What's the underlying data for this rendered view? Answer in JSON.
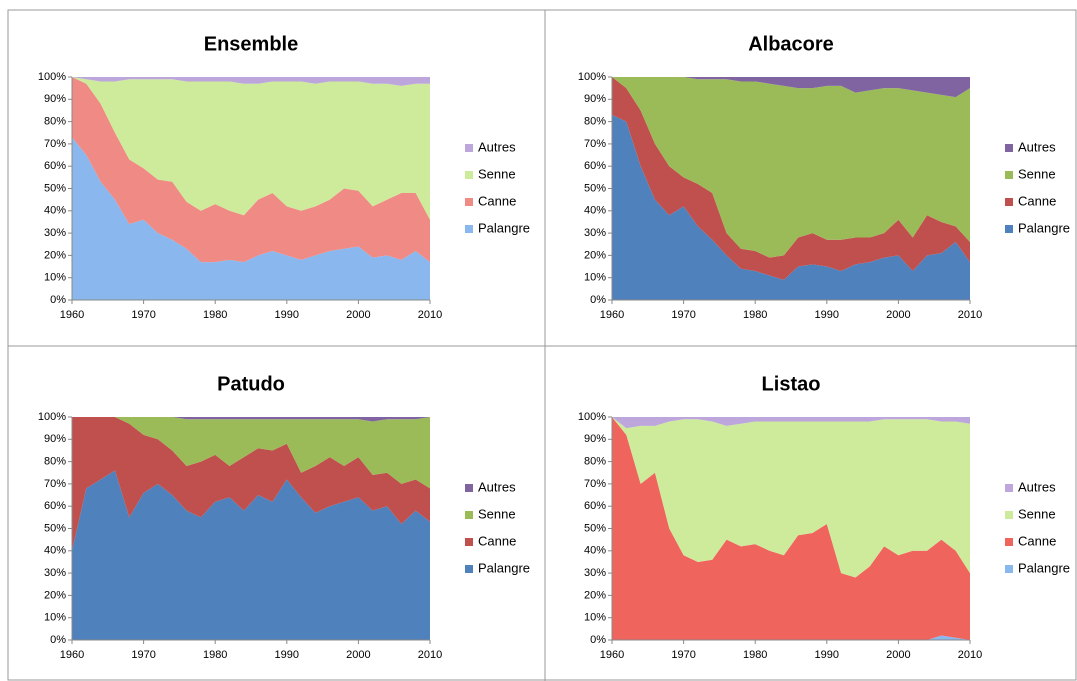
{
  "chart_data": [
    {
      "type": "area",
      "title": "Ensemble",
      "stacked": true,
      "x": [
        1960,
        1962,
        1964,
        1966,
        1968,
        1970,
        1972,
        1974,
        1976,
        1978,
        1980,
        1982,
        1984,
        1986,
        1988,
        1990,
        1992,
        1994,
        1996,
        1998,
        2000,
        2002,
        2004,
        2006,
        2008,
        2010
      ],
      "xlim": [
        1960,
        2010
      ],
      "xticks": [
        1960,
        1970,
        1980,
        1990,
        2000,
        2010
      ],
      "ylim": [
        0,
        100
      ],
      "yticks": [
        {
          "value": 0,
          "label": "0%"
        },
        {
          "value": 10,
          "label": "10%"
        },
        {
          "value": 20,
          "label": "20%"
        },
        {
          "value": 30,
          "label": "30%"
        },
        {
          "value": 40,
          "label": "40%"
        },
        {
          "value": 50,
          "label": "50%"
        },
        {
          "value": 60,
          "label": "60%"
        },
        {
          "value": 70,
          "label": "70%"
        },
        {
          "value": 80,
          "label": "80%"
        },
        {
          "value": 90,
          "label": "90%"
        },
        {
          "value": 100,
          "label": "100%"
        }
      ],
      "series": [
        {
          "name": "Palangre",
          "color": "#8ab8ee",
          "values": [
            73,
            65,
            53,
            45,
            34,
            36,
            30,
            27,
            23,
            17,
            17,
            18,
            17,
            20,
            22,
            20,
            18,
            20,
            22,
            23,
            24,
            19,
            20,
            18,
            22,
            17
          ]
        },
        {
          "name": "Canne",
          "color": "#f08a84",
          "values": [
            27,
            32,
            35,
            30,
            29,
            23,
            24,
            26,
            21,
            23,
            26,
            22,
            21,
            25,
            26,
            22,
            22,
            22,
            23,
            27,
            25,
            23,
            25,
            30,
            26,
            19
          ]
        },
        {
          "name": "Senne",
          "color": "#cdeb9a",
          "values": [
            0,
            2,
            10,
            23,
            36,
            40,
            45,
            46,
            54,
            58,
            55,
            58,
            59,
            52,
            50,
            56,
            58,
            55,
            53,
            48,
            49,
            55,
            52,
            48,
            49,
            61
          ]
        },
        {
          "name": "Autres",
          "color": "#bca6dc",
          "values": [
            0,
            1,
            2,
            2,
            1,
            1,
            1,
            1,
            2,
            2,
            2,
            2,
            3,
            3,
            2,
            2,
            2,
            3,
            2,
            2,
            2,
            3,
            3,
            4,
            3,
            3
          ]
        }
      ]
    },
    {
      "type": "area",
      "title": "Albacore",
      "stacked": true,
      "x": [
        1960,
        1962,
        1964,
        1966,
        1968,
        1970,
        1972,
        1974,
        1976,
        1978,
        1980,
        1982,
        1984,
        1986,
        1988,
        1990,
        1992,
        1994,
        1996,
        1998,
        2000,
        2002,
        2004,
        2006,
        2008,
        2010
      ],
      "xlim": [
        1960,
        2010
      ],
      "xticks": [
        1960,
        1970,
        1980,
        1990,
        2000,
        2010
      ],
      "ylim": [
        0,
        100
      ],
      "yticks": [
        {
          "value": 0,
          "label": "0%"
        },
        {
          "value": 10,
          "label": "10%"
        },
        {
          "value": 20,
          "label": "20%"
        },
        {
          "value": 30,
          "label": "30%"
        },
        {
          "value": 40,
          "label": "40%"
        },
        {
          "value": 50,
          "label": "50%"
        },
        {
          "value": 60,
          "label": "60%"
        },
        {
          "value": 70,
          "label": "70%"
        },
        {
          "value": 80,
          "label": "80%"
        },
        {
          "value": 90,
          "label": "90%"
        },
        {
          "value": 100,
          "label": "100%"
        }
      ],
      "series": [
        {
          "name": "Palangre",
          "color": "#4f81bd",
          "values": [
            83,
            80,
            60,
            45,
            38,
            42,
            33,
            27,
            20,
            14,
            13,
            11,
            9,
            15,
            16,
            15,
            13,
            16,
            17,
            19,
            20,
            13,
            20,
            21,
            26,
            17
          ]
        },
        {
          "name": "Canne",
          "color": "#c0504d",
          "values": [
            17,
            15,
            25,
            25,
            22,
            13,
            19,
            21,
            10,
            9,
            9,
            8,
            11,
            13,
            14,
            12,
            14,
            12,
            11,
            11,
            16,
            15,
            18,
            14,
            7,
            9
          ]
        },
        {
          "name": "Senne",
          "color": "#9bbb59",
          "values": [
            0,
            5,
            15,
            30,
            40,
            45,
            47,
            51,
            69,
            75,
            76,
            78,
            76,
            67,
            65,
            69,
            69,
            65,
            66,
            65,
            59,
            66,
            55,
            57,
            58,
            69
          ]
        },
        {
          "name": "Autres",
          "color": "#8064a2",
          "values": [
            0,
            0,
            0,
            0,
            0,
            0,
            1,
            1,
            1,
            2,
            2,
            3,
            4,
            5,
            5,
            4,
            4,
            7,
            6,
            5,
            5,
            6,
            7,
            8,
            9,
            5
          ]
        }
      ]
    },
    {
      "type": "area",
      "title": "Patudo",
      "stacked": true,
      "x": [
        1960,
        1962,
        1964,
        1966,
        1968,
        1970,
        1972,
        1974,
        1976,
        1978,
        1980,
        1982,
        1984,
        1986,
        1988,
        1990,
        1992,
        1994,
        1996,
        1998,
        2000,
        2002,
        2004,
        2006,
        2008,
        2010
      ],
      "xlim": [
        1960,
        2010
      ],
      "xticks": [
        1960,
        1970,
        1980,
        1990,
        2000,
        2010
      ],
      "ylim": [
        0,
        100
      ],
      "yticks": [
        {
          "value": 0,
          "label": "0%"
        },
        {
          "value": 10,
          "label": "10%"
        },
        {
          "value": 20,
          "label": "20%"
        },
        {
          "value": 30,
          "label": "30%"
        },
        {
          "value": 40,
          "label": "40%"
        },
        {
          "value": 50,
          "label": "50%"
        },
        {
          "value": 60,
          "label": "60%"
        },
        {
          "value": 70,
          "label": "70%"
        },
        {
          "value": 80,
          "label": "80%"
        },
        {
          "value": 90,
          "label": "90%"
        },
        {
          "value": 100,
          "label": "100%"
        }
      ],
      "series": [
        {
          "name": "Palangre",
          "color": "#4f81bd",
          "values": [
            40,
            68,
            72,
            76,
            55,
            66,
            70,
            65,
            58,
            55,
            62,
            64,
            58,
            65,
            62,
            72,
            64,
            57,
            60,
            62,
            64,
            58,
            60,
            52,
            58,
            53
          ]
        },
        {
          "name": "Canne",
          "color": "#c0504d",
          "values": [
            60,
            32,
            28,
            24,
            42,
            26,
            20,
            20,
            20,
            25,
            21,
            14,
            24,
            21,
            23,
            16,
            11,
            21,
            22,
            16,
            18,
            16,
            15,
            18,
            14,
            15
          ]
        },
        {
          "name": "Senne",
          "color": "#9bbb59",
          "values": [
            0,
            0,
            0,
            0,
            3,
            8,
            10,
            15,
            21,
            19,
            16,
            21,
            17,
            13,
            14,
            11,
            24,
            21,
            17,
            21,
            17,
            24,
            24,
            29,
            27,
            32
          ]
        },
        {
          "name": "Autres",
          "color": "#8064a2",
          "values": [
            0,
            0,
            0,
            0,
            0,
            0,
            0,
            0,
            1,
            1,
            1,
            1,
            1,
            1,
            1,
            1,
            1,
            1,
            1,
            1,
            1,
            2,
            1,
            1,
            1,
            0
          ]
        }
      ]
    },
    {
      "type": "area",
      "title": "Listao",
      "stacked": true,
      "x": [
        1960,
        1962,
        1964,
        1966,
        1968,
        1970,
        1972,
        1974,
        1976,
        1978,
        1980,
        1982,
        1984,
        1986,
        1988,
        1990,
        1992,
        1994,
        1996,
        1998,
        2000,
        2002,
        2004,
        2006,
        2008,
        2010
      ],
      "xlim": [
        1960,
        2010
      ],
      "xticks": [
        1960,
        1970,
        1980,
        1990,
        2000,
        2010
      ],
      "ylim": [
        0,
        100
      ],
      "yticks": [
        {
          "value": 0,
          "label": "0%"
        },
        {
          "value": 10,
          "label": "10%"
        },
        {
          "value": 20,
          "label": "20%"
        },
        {
          "value": 30,
          "label": "30%"
        },
        {
          "value": 40,
          "label": "40%"
        },
        {
          "value": 50,
          "label": "50%"
        },
        {
          "value": 60,
          "label": "60%"
        },
        {
          "value": 70,
          "label": "70%"
        },
        {
          "value": 80,
          "label": "80%"
        },
        {
          "value": 90,
          "label": "90%"
        },
        {
          "value": 100,
          "label": "100%"
        }
      ],
      "series": [
        {
          "name": "Palangre",
          "color": "#8ab8ee",
          "values": [
            0,
            0,
            0,
            0,
            0,
            0,
            0,
            0,
            0,
            0,
            0,
            0,
            0,
            0,
            0,
            0,
            0,
            0,
            0,
            0,
            0,
            0,
            0,
            2,
            1,
            0
          ]
        },
        {
          "name": "Canne",
          "color": "#f0645e",
          "values": [
            100,
            92,
            70,
            75,
            50,
            38,
            35,
            36,
            45,
            42,
            43,
            40,
            38,
            47,
            48,
            52,
            30,
            28,
            33,
            42,
            38,
            40,
            40,
            43,
            39,
            30
          ]
        },
        {
          "name": "Senne",
          "color": "#cdeb9a",
          "values": [
            0,
            3,
            26,
            21,
            48,
            61,
            64,
            62,
            51,
            55,
            55,
            58,
            60,
            51,
            50,
            46,
            68,
            70,
            65,
            57,
            61,
            59,
            59,
            53,
            58,
            67
          ]
        },
        {
          "name": "Autres",
          "color": "#bca6dc",
          "values": [
            0,
            5,
            4,
            4,
            2,
            1,
            1,
            2,
            4,
            3,
            2,
            2,
            2,
            2,
            2,
            2,
            2,
            2,
            2,
            1,
            1,
            1,
            1,
            2,
            2,
            3
          ]
        }
      ]
    }
  ]
}
